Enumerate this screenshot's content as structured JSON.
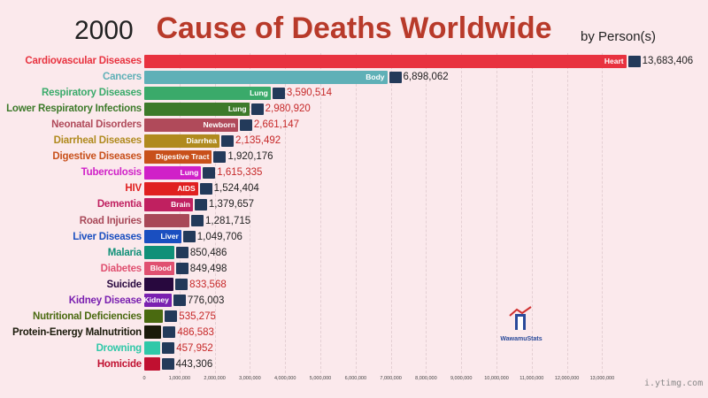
{
  "header": {
    "year": "2000",
    "title": "Cause of Deaths Worldwide",
    "subtitle": "by Person(s)"
  },
  "logo": {
    "text": "WawamuStats"
  },
  "watermark": "i.ytimg.com",
  "chart_data": {
    "type": "bar",
    "orientation": "horizontal",
    "title": "Cause of Deaths Worldwide",
    "xlim": [
      0,
      13000000
    ],
    "grid": true,
    "x_ticks": [
      "0",
      "1,000,000",
      "2,000,000",
      "3,000,000",
      "4,000,000",
      "5,000,000",
      "6,000,000",
      "7,000,000",
      "8,000,000",
      "9,000,000",
      "10,000,000",
      "11,000,000",
      "12,000,000",
      "13,000,000"
    ],
    "rows": [
      {
        "category": "Cardiovascular Diseases",
        "value": 13683406,
        "value_label": "13,683,406",
        "inner_label": "Heart",
        "icon": "heart-image-icon",
        "color": "#e8323f",
        "value_color": "#222222"
      },
      {
        "category": "Cancers",
        "value": 6898062,
        "value_label": "6,898,062",
        "inner_label": "Body",
        "icon": "body-image-icon",
        "color": "#5fb0b7",
        "value_color": "#222222"
      },
      {
        "category": "Respiratory Diseases",
        "value": 3590514,
        "value_label": "3,590,514",
        "inner_label": "Lung",
        "icon": "lung-image-icon",
        "color": "#3aaa6a",
        "value_color": "#c62828"
      },
      {
        "category": "Lower Respiratory Infections",
        "value": 2980920,
        "value_label": "2,980,920",
        "inner_label": "Lung",
        "icon": "lung-image-icon",
        "color": "#3d7a2a",
        "value_color": "#c62828"
      },
      {
        "category": "Neonatal Disorders",
        "value": 2661147,
        "value_label": "2,661,147",
        "inner_label": "Newborn",
        "icon": "newborn-image-icon",
        "color": "#b04a5a",
        "value_color": "#c62828"
      },
      {
        "category": "Diarrheal Diseases",
        "value": 2135492,
        "value_label": "2,135,492",
        "inner_label": "Diarrhea",
        "icon": "diarrhea-image-icon",
        "color": "#b08a1e",
        "value_color": "#c62828"
      },
      {
        "category": "Digestive Diseases",
        "value": 1920176,
        "value_label": "1,920,176",
        "inner_label": "Digestive Tract",
        "icon": "digestive-tract-image-icon",
        "color": "#c8501a",
        "value_color": "#222222"
      },
      {
        "category": "Tuberculosis",
        "value": 1615335,
        "value_label": "1,615,335",
        "inner_label": "Lung",
        "icon": "lung-xray-image-icon",
        "color": "#d020c8",
        "value_color": "#c62828"
      },
      {
        "category": "HIV",
        "value": 1524404,
        "value_label": "1,524,404",
        "inner_label": "AIDS",
        "icon": "aids-ribbon-icon",
        "color": "#e02020",
        "value_color": "#222222"
      },
      {
        "category": "Dementia",
        "value": 1379657,
        "value_label": "1,379,657",
        "inner_label": "Brain",
        "icon": "brain-image-icon",
        "color": "#c02060",
        "value_color": "#222222"
      },
      {
        "category": "Road Injuries",
        "value": 1281715,
        "value_label": "1,281,715",
        "inner_label": "",
        "icon": "road-image-icon",
        "color": "#a84858",
        "value_color": "#222222"
      },
      {
        "category": "Liver Diseases",
        "value": 1049706,
        "value_label": "1,049,706",
        "inner_label": "Liver",
        "icon": "liver-image-icon",
        "color": "#1a4fc0",
        "value_color": "#222222"
      },
      {
        "category": "Malaria",
        "value": 850486,
        "value_label": "850,486",
        "inner_label": "",
        "icon": "mosquito-image-icon",
        "color": "#109078",
        "value_color": "#222222"
      },
      {
        "category": "Diabetes",
        "value": 849498,
        "value_label": "849,498",
        "inner_label": "Blood",
        "icon": "blood-image-icon",
        "color": "#e05070",
        "value_color": "#222222"
      },
      {
        "category": "Suicide",
        "value": 833568,
        "value_label": "833,568",
        "inner_label": "",
        "icon": "yellow-ribbon-icon",
        "color": "#28083e",
        "value_color": "#c62828"
      },
      {
        "category": "Kidney Disease",
        "value": 776003,
        "value_label": "776,003",
        "inner_label": "Kidney",
        "icon": "kidney-image-icon",
        "color": "#7a20b0",
        "value_color": "#222222"
      },
      {
        "category": "Nutritional Deficiencies",
        "value": 535275,
        "value_label": "535,275",
        "inner_label": "",
        "icon": "food-image-icon",
        "color": "#4a6a10",
        "value_color": "#c62828"
      },
      {
        "category": "Protein-Energy Malnutrition",
        "value": 486583,
        "value_label": "486,583",
        "inner_label": "",
        "icon": "malnutrition-image-icon",
        "color": "#1a1a0a",
        "value_color": "#c62828"
      },
      {
        "category": "Drowning",
        "value": 457952,
        "value_label": "457,952",
        "inner_label": "",
        "icon": "water-image-icon",
        "color": "#30c8a8",
        "value_color": "#c62828"
      },
      {
        "category": "Homicide",
        "value": 443306,
        "value_label": "443,306",
        "inner_label": "",
        "icon": "homicide-image-icon",
        "color": "#c01030",
        "value_color": "#222222"
      }
    ]
  }
}
